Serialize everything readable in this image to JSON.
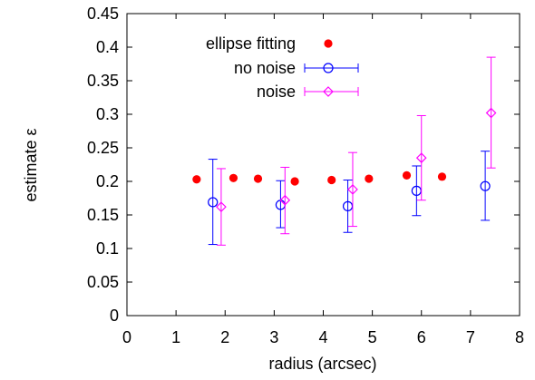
{
  "chart_data": {
    "type": "scatter",
    "xlabel": "radius (arcsec)",
    "ylabel": "estimate ε",
    "xlim": [
      0,
      8
    ],
    "ylim": [
      0,
      0.45
    ],
    "x_ticks": [
      "0",
      "1",
      "2",
      "3",
      "4",
      "5",
      "6",
      "7",
      "8"
    ],
    "y_ticks": [
      "0",
      "0.05",
      "0.1",
      "0.15",
      "0.2",
      "0.25",
      "0.3",
      "0.35",
      "0.4",
      "0.45"
    ],
    "grid": false,
    "legend_position": "top-left",
    "series": [
      {
        "name": "ellipse fitting",
        "marker": "filled-circle",
        "color": "#ff0000",
        "points": [
          {
            "x": 1.42,
            "y": 0.203
          },
          {
            "x": 2.17,
            "y": 0.205
          },
          {
            "x": 2.67,
            "y": 0.204
          },
          {
            "x": 3.42,
            "y": 0.2
          },
          {
            "x": 4.17,
            "y": 0.202
          },
          {
            "x": 4.93,
            "y": 0.204
          },
          {
            "x": 5.7,
            "y": 0.209
          },
          {
            "x": 6.42,
            "y": 0.207
          }
        ]
      },
      {
        "name": "no noise",
        "marker": "open-circle",
        "color": "#0000ff",
        "points": [
          {
            "x": 1.75,
            "y": 0.169,
            "low": 0.106,
            "high": 0.233
          },
          {
            "x": 3.13,
            "y": 0.165,
            "low": 0.131,
            "high": 0.201
          },
          {
            "x": 4.5,
            "y": 0.163,
            "low": 0.124,
            "high": 0.202
          },
          {
            "x": 5.9,
            "y": 0.186,
            "low": 0.149,
            "high": 0.223
          },
          {
            "x": 7.3,
            "y": 0.193,
            "low": 0.142,
            "high": 0.245
          }
        ]
      },
      {
        "name": "noise",
        "marker": "open-diamond",
        "color": "#ff00ff",
        "points": [
          {
            "x": 1.92,
            "y": 0.162,
            "low": 0.105,
            "high": 0.219
          },
          {
            "x": 3.22,
            "y": 0.172,
            "low": 0.122,
            "high": 0.221
          },
          {
            "x": 4.6,
            "y": 0.188,
            "low": 0.133,
            "high": 0.243
          },
          {
            "x": 6.0,
            "y": 0.235,
            "low": 0.172,
            "high": 0.298
          },
          {
            "x": 7.42,
            "y": 0.302,
            "low": 0.22,
            "high": 0.385
          }
        ]
      }
    ]
  }
}
